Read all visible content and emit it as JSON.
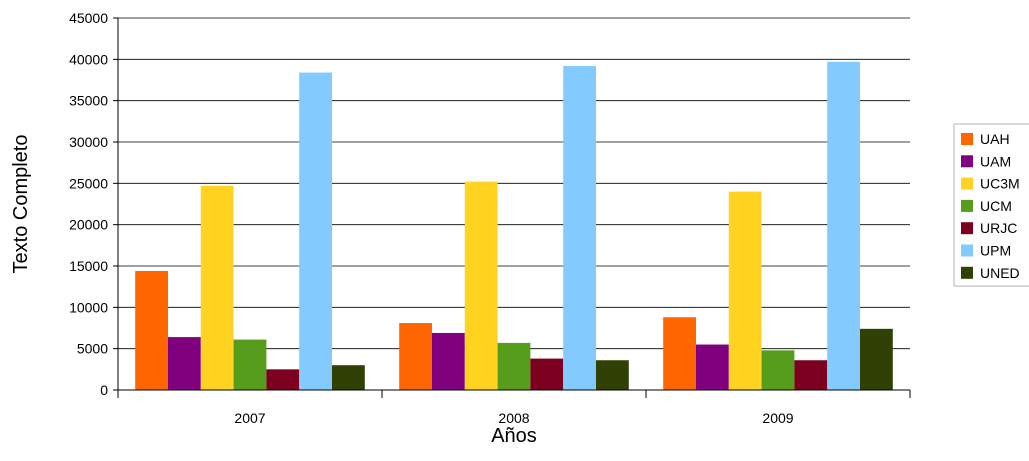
{
  "chart_data": {
    "type": "bar",
    "categories": [
      "2007",
      "2008",
      "2009"
    ],
    "series": [
      {
        "name": "UAH",
        "color": "#ff6600",
        "values": [
          14400,
          8100,
          8800
        ]
      },
      {
        "name": "UAM",
        "color": "#800080",
        "values": [
          6400,
          6900,
          5500
        ]
      },
      {
        "name": "UC3M",
        "color": "#ffd320",
        "values": [
          24700,
          25200,
          24000
        ]
      },
      {
        "name": "UCM",
        "color": "#579d1c",
        "values": [
          6100,
          5700,
          4800
        ]
      },
      {
        "name": "URJC",
        "color": "#7e0021",
        "values": [
          2500,
          3800,
          3600
        ]
      },
      {
        "name": "UPM",
        "color": "#83caff",
        "values": [
          38400,
          39200,
          39700
        ]
      },
      {
        "name": "UNED",
        "color": "#314004",
        "values": [
          3000,
          3600,
          7400
        ]
      }
    ],
    "xlabel": "Años",
    "ylabel": "Texto Completo",
    "ylim": [
      0,
      45000
    ],
    "yticks": [
      "0",
      "5000",
      "10000",
      "15000",
      "20000",
      "25000",
      "30000",
      "35000",
      "40000",
      "45000"
    ],
    "grid": true,
    "legend_position": "right"
  }
}
